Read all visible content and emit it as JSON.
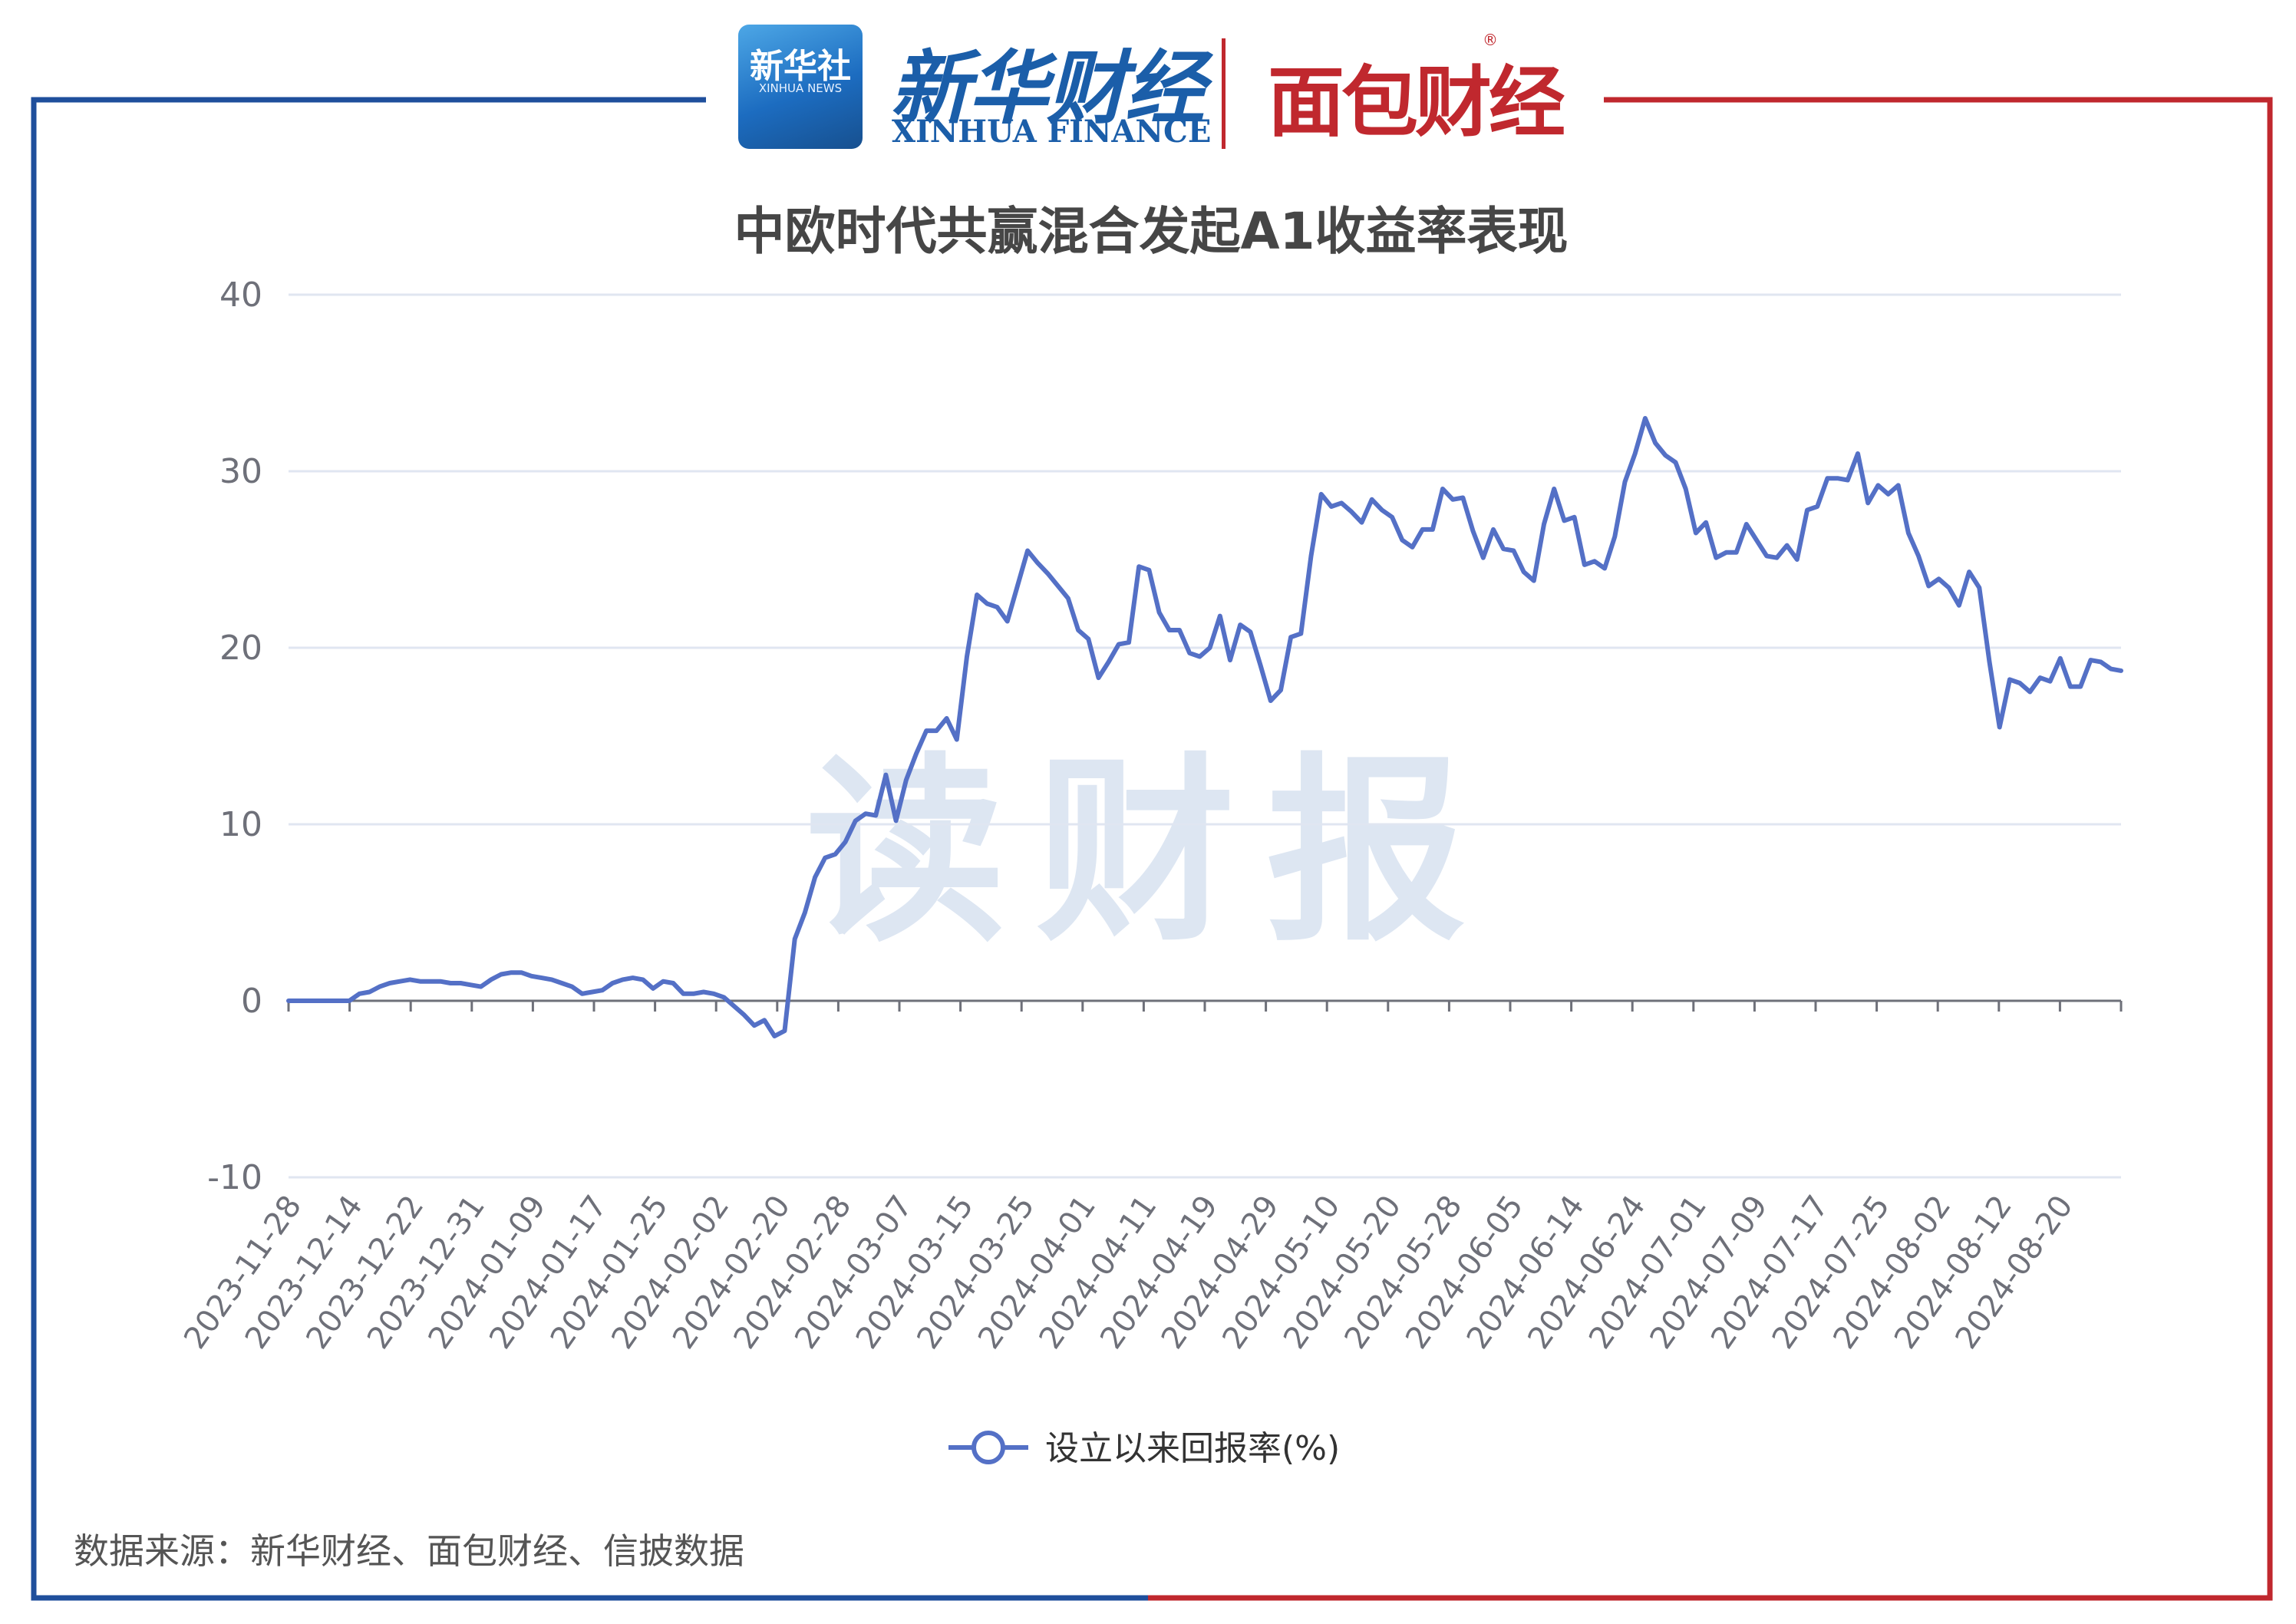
{
  "header": {
    "badge_cn": "新华社",
    "badge_en": "XINHUA NEWS",
    "brand_cn": "新华财经",
    "brand_en": "XINHUA FINANCE",
    "partner": "面包财经",
    "registered_mark": "®"
  },
  "watermark": "读财报",
  "source_note": "数据来源：新华财经、面包财经、信披数据",
  "colors": {
    "line": "#5470c6",
    "frame_left": "#1f4f9c",
    "frame_right": "#c0282e",
    "grid": "#e0e6f1",
    "watermark": "#dde6f2"
  },
  "chart_data": {
    "type": "line",
    "title": "中欧时代共赢混合发起A1收益率表现",
    "xlabel": "",
    "ylabel": "",
    "ylim": [
      -10,
      40
    ],
    "yticks": [
      -10,
      0,
      10,
      20,
      30,
      40
    ],
    "grid": true,
    "legend_position": "bottom-center",
    "x_tick_labels": [
      "2023-11-28",
      "2023-12-14",
      "2023-12-22",
      "2023-12-31",
      "2024-01-09",
      "2024-01-17",
      "2024-01-25",
      "2024-02-02",
      "2024-02-20",
      "2024-02-28",
      "2024-03-07",
      "2024-03-15",
      "2024-03-25",
      "2024-04-01",
      "2024-04-11",
      "2024-04-19",
      "2024-04-29",
      "2024-05-10",
      "2024-05-20",
      "2024-05-28",
      "2024-06-05",
      "2024-06-14",
      "2024-06-24",
      "2024-07-01",
      "2024-07-09",
      "2024-07-17",
      "2024-07-25",
      "2024-08-02",
      "2024-08-12",
      "2024-08-20"
    ],
    "series": [
      {
        "name": "设立以来回报率(%)",
        "values": [
          0,
          0,
          0,
          0,
          0,
          0,
          0,
          0.4,
          0.5,
          0.8,
          1.0,
          1.1,
          1.2,
          1.1,
          1.1,
          1.1,
          1.0,
          1.0,
          0.9,
          0.8,
          1.2,
          1.5,
          1.6,
          1.6,
          1.4,
          1.3,
          1.2,
          1.0,
          0.8,
          0.4,
          0.5,
          0.6,
          1.0,
          1.2,
          1.3,
          1.2,
          0.7,
          1.1,
          1.0,
          0.4,
          0.4,
          0.5,
          0.4,
          0.2,
          -0.3,
          -0.8,
          -1.4,
          -1.1,
          -2.0,
          -1.7,
          3.5,
          5.0,
          7.0,
          8.1,
          8.3,
          9.0,
          10.2,
          10.6,
          10.5,
          12.8,
          10.2,
          12.5,
          14.0,
          15.3,
          15.3,
          16.0,
          14.8,
          19.5,
          23.0,
          22.5,
          22.3,
          21.5,
          23.5,
          25.5,
          24.8,
          24.2,
          23.5,
          22.8,
          21.0,
          20.5,
          18.3,
          19.2,
          20.2,
          20.3,
          24.6,
          24.4,
          22.0,
          21.0,
          21.0,
          19.7,
          19.5,
          20.0,
          21.8,
          19.3,
          21.3,
          20.9,
          19.0,
          17.0,
          17.6,
          20.6,
          20.8,
          25.2,
          28.7,
          28.0,
          28.2,
          27.7,
          27.1,
          28.4,
          27.8,
          27.4,
          26.1,
          25.7,
          26.7,
          26.7,
          29.0,
          28.4,
          28.5,
          26.6,
          25.1,
          26.7,
          25.6,
          25.5,
          24.3,
          23.8,
          27.0,
          29.0,
          27.2,
          27.4,
          24.7,
          24.9,
          24.5,
          26.3,
          29.4,
          31.0,
          33.0,
          31.6,
          30.9,
          30.5,
          29.0,
          26.5,
          27.1,
          25.1,
          25.4,
          25.4,
          27.0,
          26.1,
          25.2,
          25.1,
          25.8,
          25.0,
          27.8,
          28.0,
          29.6,
          29.6,
          29.5,
          31.0,
          28.2,
          29.2,
          28.7,
          29.2,
          26.5,
          25.2,
          23.5,
          23.9,
          23.4,
          22.4,
          24.3,
          23.4,
          19.2,
          15.5,
          18.2,
          18.0,
          17.5,
          18.3,
          18.1,
          19.4,
          17.8,
          17.8,
          19.3,
          19.2,
          18.8,
          18.7
        ]
      }
    ]
  }
}
